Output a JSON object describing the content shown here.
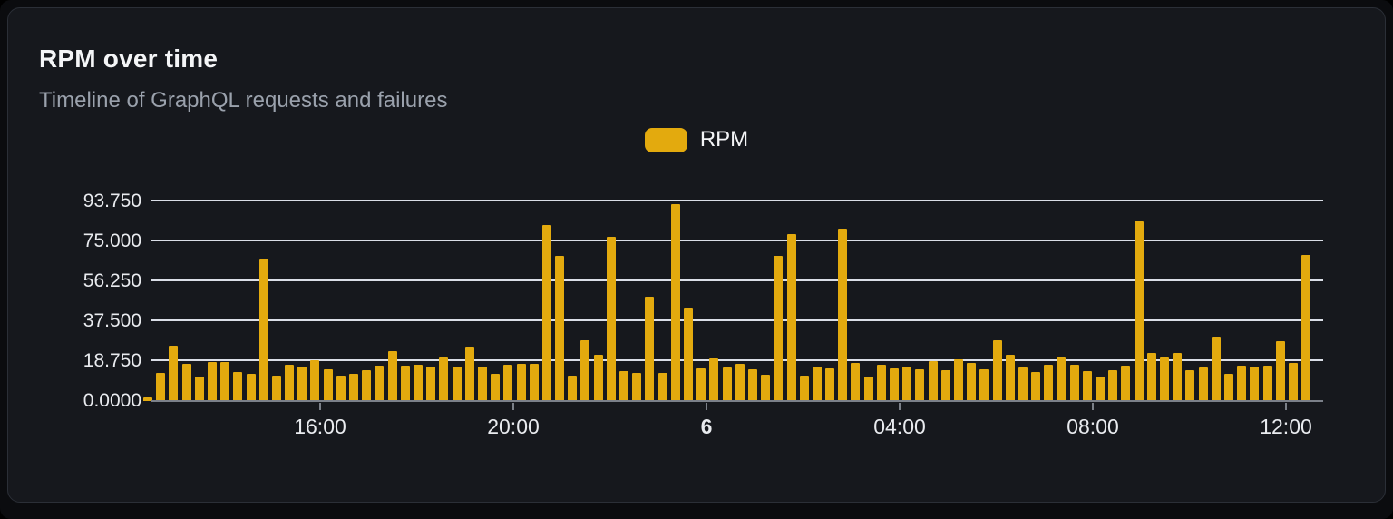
{
  "header": {
    "title": "RPM over time",
    "subtitle": "Timeline of GraphQL requests and failures"
  },
  "legend": {
    "items": [
      {
        "label": "RPM",
        "color": "#e3aa0e"
      }
    ]
  },
  "chart_data": {
    "type": "bar",
    "title": "RPM over time",
    "subtitle": "Timeline of GraphQL requests and failures",
    "xlabel": "",
    "ylabel": "",
    "grid": true,
    "legend_position": "top-center",
    "x_axis": {
      "tick_labels": [
        "16:00",
        "20:00",
        "6",
        "04:00",
        "08:00",
        "12:00"
      ],
      "bold_tick": "6",
      "note": "ticks every 4 hours, day boundary shown as bold 6"
    },
    "y_axis": {
      "tick_labels": [
        "0.0000",
        "18.750",
        "37.500",
        "56.250",
        "75.000",
        "93.750"
      ],
      "tick_values": [
        0,
        18.75,
        37.5,
        56.25,
        75,
        93.75
      ],
      "range": [
        0,
        100
      ]
    },
    "series": [
      {
        "name": "RPM",
        "values": [
          1.7,
          13.3,
          25.8,
          17.5,
          11.5,
          18.2,
          18.4,
          13.6,
          12.9,
          66.2,
          12.0,
          17.2,
          16.1,
          19.1,
          15.1,
          11.9,
          12.8,
          14.3,
          16.6,
          23.4,
          16.8,
          17.1,
          16.1,
          20.4,
          16.1,
          25.7,
          16.1,
          12.8,
          17.2,
          17.5,
          17.5,
          82.7,
          68.2,
          11.9,
          28.7,
          21.8,
          77.1,
          13.9,
          13.2,
          48.9,
          13.2,
          92.2,
          43.3,
          15.3,
          20.2,
          15.6,
          17.5,
          15.1,
          12.2,
          68.1,
          78.1,
          12.0,
          16.1,
          15.3,
          80.9,
          17.8,
          11.6,
          16.9,
          15.3,
          16.1,
          15.1,
          18.6,
          14.3,
          19.4,
          17.8,
          15.1,
          28.7,
          21.5,
          15.8,
          13.6,
          17.2,
          20.4,
          17.2,
          13.9,
          11.5,
          14.6,
          16.6,
          84.4,
          22.7,
          20.6,
          22.5,
          14.3,
          15.8,
          30.3,
          12.8,
          16.6,
          16.1,
          16.5,
          28.0,
          17.9,
          68.4
        ]
      }
    ],
    "colors": {
      "bar": "#e3aa0e",
      "gridline": "#dadee7",
      "axis": "#7b8089",
      "card_background": "#16181d",
      "page_background": "#0b0c0f",
      "title_text": "#f4f5f7",
      "subtitle_text": "#9aa1ac",
      "tick_text": "#e9ebef"
    }
  }
}
